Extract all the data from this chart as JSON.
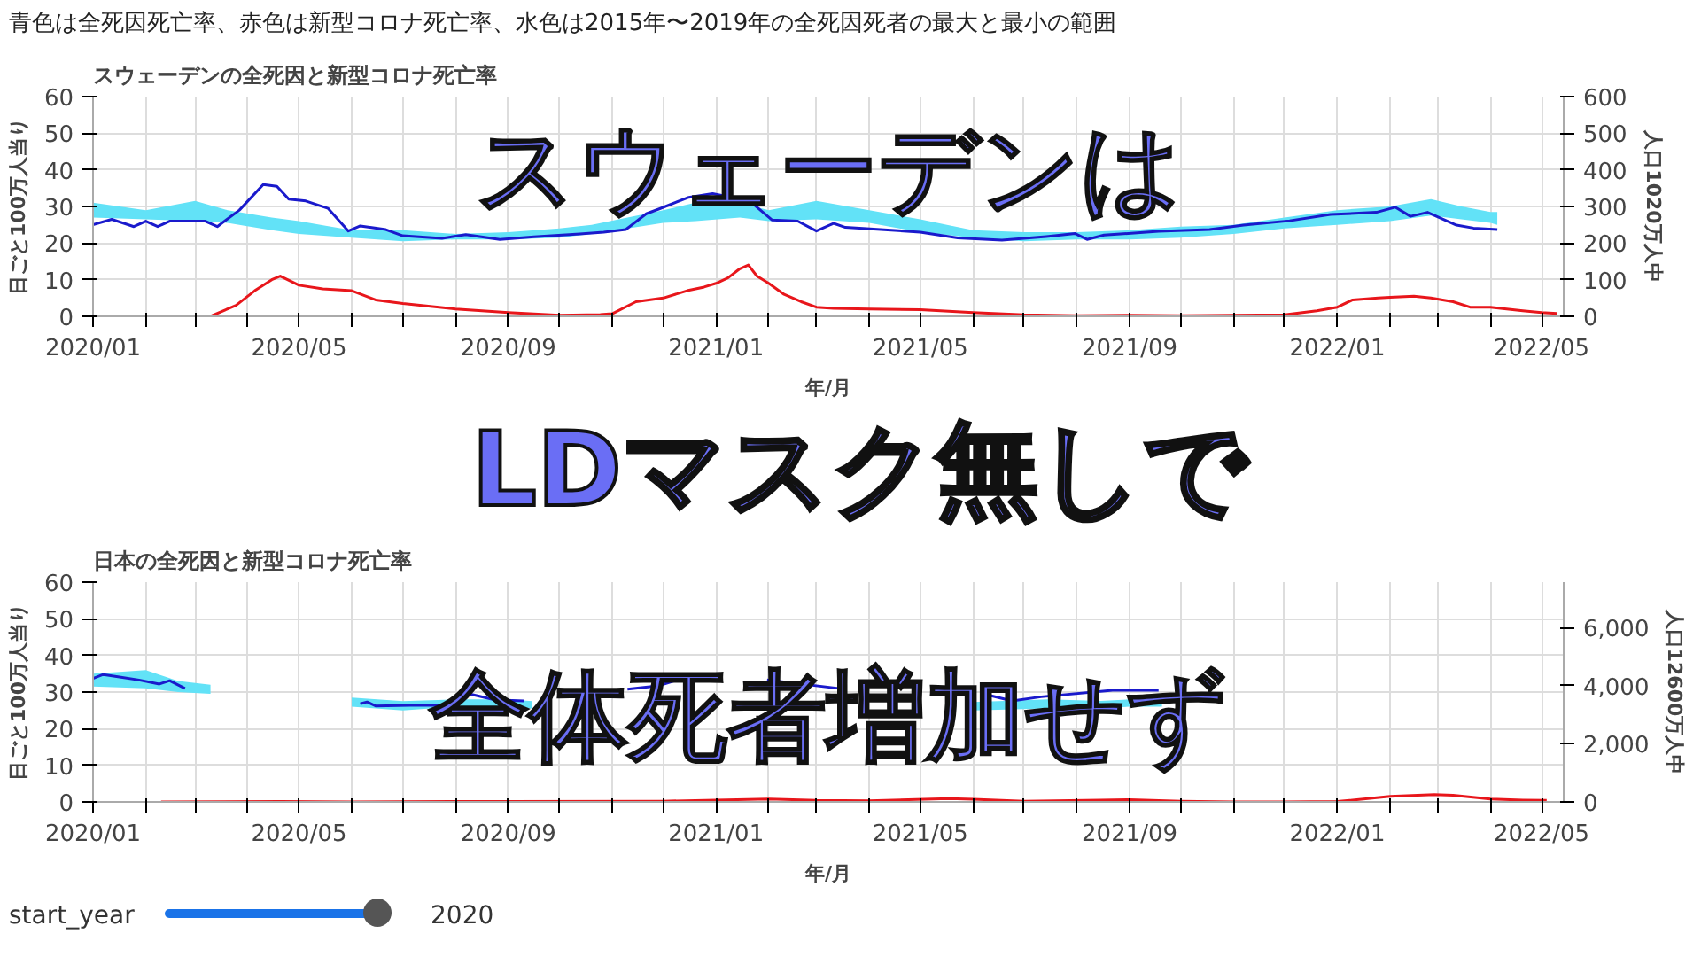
{
  "chart_data": [
    {
      "type": "line",
      "title": "スウェーデンの全死因と新型コロナ死亡率",
      "xlabel": "年/月",
      "ylabel": "日ごと100万人当り",
      "y2label": "人口1020万人中",
      "annotations": [
        "青色は全死因死亡率、赤色は新型コロナ死亡率、水色は2015年〜2019年の全死因死者の最大と最小の範囲",
        "スウェーデンは"
      ],
      "xlim": [
        "2020-01-01",
        "2022-05-14"
      ],
      "ylim": [
        0,
        60
      ],
      "yticks": [
        0,
        10,
        20,
        30,
        40,
        50,
        60
      ],
      "y2lim": [
        0,
        600
      ],
      "y2ticks": [
        0,
        100,
        200,
        300,
        400,
        500,
        600
      ],
      "xticks": [
        {
          "value": "2020-01",
          "label": "2020/01"
        },
        {
          "value": "2020-02",
          "label": null
        },
        {
          "value": "2020-03",
          "label": null
        },
        {
          "value": "2020-04",
          "label": null
        },
        {
          "value": "2020-05",
          "label": "2020/05"
        },
        {
          "value": "2020-06",
          "label": null
        },
        {
          "value": "2020-07",
          "label": null
        },
        {
          "value": "2020-08",
          "label": null
        },
        {
          "value": "2020-09",
          "label": "2020/09"
        },
        {
          "value": "2020-10",
          "label": null
        },
        {
          "value": "2020-11",
          "label": null
        },
        {
          "value": "2020-12",
          "label": null
        },
        {
          "value": "2021-01",
          "label": "2021/01"
        },
        {
          "value": "2021-02",
          "label": null
        },
        {
          "value": "2021-03",
          "label": null
        },
        {
          "value": "2021-04",
          "label": null
        },
        {
          "value": "2021-05",
          "label": "2021/05"
        },
        {
          "value": "2021-06",
          "label": null
        },
        {
          "value": "2021-07",
          "label": null
        },
        {
          "value": "2021-08",
          "label": null
        },
        {
          "value": "2021-09",
          "label": "2021/09"
        },
        {
          "value": "2021-10",
          "label": null
        },
        {
          "value": "2021-11",
          "label": null
        },
        {
          "value": "2021-12",
          "label": null
        },
        {
          "value": "2022-01",
          "label": "2022/01"
        },
        {
          "value": "2022-02",
          "label": null
        },
        {
          "value": "2022-03",
          "label": null
        },
        {
          "value": "2022-04",
          "label": null
        },
        {
          "value": "2022-05",
          "label": "2022/05"
        }
      ],
      "grid": true,
      "series": [
        {
          "color": "#62e2f7",
          "x": [
            "2020-01-01",
            "2020-02-01",
            "2020-03-01",
            "2020-03-20",
            "2020-04-15",
            "2020-05-01",
            "2020-06-01",
            "2020-07-01",
            "2020-08-01",
            "2020-09-01",
            "2020-10-01",
            "2020-10-20",
            "2020-12-01",
            "2020-12-20",
            "2021-01-15",
            "2021-02-01",
            "2021-03-01",
            "2021-04-01",
            "2021-05-01",
            "2021-06-01",
            "2021-07-01",
            "2021-08-01",
            "2021-09-01",
            "2021-10-01",
            "2021-11-01",
            "2021-12-01",
            "2022-01-01",
            "2022-02-01",
            "2022-02-25",
            "2022-03-15",
            "2022-04-01",
            "2022-04-05"
          ],
          "values": [
            null,
            null,
            null,
            null,
            null,
            null,
            null,
            null,
            null,
            null,
            null,
            null,
            null,
            null,
            null,
            null,
            null,
            null,
            null,
            null,
            null,
            null,
            null,
            null,
            null,
            null,
            null,
            null,
            null,
            null,
            null,
            null
          ],
          "upper": [
            31,
            29,
            31.5,
            29,
            27,
            26,
            23.5,
            23.5,
            22.5,
            23,
            24,
            25,
            29,
            31,
            31,
            29,
            31.5,
            29,
            26.5,
            23.5,
            23,
            23,
            23.5,
            24.5,
            25,
            27,
            29,
            30,
            32,
            30,
            28.5,
            28.5
          ],
          "lower": [
            27,
            26.5,
            26,
            25.5,
            23.5,
            22.5,
            21.5,
            20.5,
            21,
            21,
            21.5,
            22.5,
            25.5,
            26,
            27,
            26,
            26.5,
            25.5,
            23,
            21.5,
            20.5,
            21,
            21,
            21.5,
            22.5,
            24,
            25,
            26,
            27.5,
            26.5,
            25.5,
            25
          ]
        },
        {
          "color": "#1a1acc",
          "x": [
            "2020-01-01",
            "2020-01-12",
            "2020-01-25",
            "2020-02-01",
            "2020-02-08",
            "2020-02-15",
            "2020-03-07",
            "2020-03-14",
            "2020-03-27",
            "2020-04-10",
            "2020-04-18",
            "2020-04-25",
            "2020-05-05",
            "2020-05-18",
            "2020-05-30",
            "2020-06-06",
            "2020-06-21",
            "2020-07-01",
            "2020-07-24",
            "2020-08-07",
            "2020-08-27",
            "2020-09-16",
            "2020-10-13",
            "2020-10-27",
            "2020-11-09",
            "2020-11-21",
            "2020-11-29",
            "2020-12-16",
            "2020-12-30",
            "2021-01-12",
            "2021-01-22",
            "2021-02-03",
            "2021-02-18",
            "2021-03-01",
            "2021-03-11",
            "2021-03-18",
            "2021-05-01",
            "2021-05-23",
            "2021-06-18",
            "2021-07-14",
            "2021-07-31",
            "2021-08-07",
            "2021-08-17",
            "2021-09-18",
            "2021-10-18",
            "2021-11-07",
            "2021-12-04",
            "2021-12-28",
            "2022-01-24",
            "2022-02-04",
            "2022-02-13",
            "2022-02-23",
            "2022-03-12",
            "2022-03-22",
            "2022-04-05"
          ],
          "values": [
            25,
            26.5,
            24.5,
            26,
            24.5,
            26,
            26,
            24.5,
            29,
            36,
            35.5,
            32,
            31.5,
            29.5,
            23.3,
            24.7,
            23.7,
            22,
            21.3,
            22.3,
            21,
            21.7,
            22.5,
            23,
            23.7,
            28,
            29.4,
            32.5,
            33.5,
            32.3,
            31,
            26.3,
            26,
            23.3,
            25.4,
            24.3,
            23,
            21.4,
            20.8,
            21.8,
            22.6,
            21,
            22.2,
            23.2,
            23.7,
            24.9,
            26.1,
            27.8,
            28.4,
            29.8,
            27.3,
            28.4,
            24.9,
            24.1,
            23.7
          ]
        },
        {
          "color": "#e8161b",
          "x": [
            "2020-03-10",
            "2020-03-25",
            "2020-04-05",
            "2020-04-15",
            "2020-04-20",
            "2020-05-01",
            "2020-05-15",
            "2020-06-01",
            "2020-06-15",
            "2020-07-01",
            "2020-08-01",
            "2020-09-01",
            "2020-10-01",
            "2020-10-25",
            "2020-11-01",
            "2020-11-15",
            "2020-12-01",
            "2020-12-15",
            "2020-12-25",
            "2021-01-01",
            "2021-01-08",
            "2021-01-15",
            "2021-01-20",
            "2021-01-25",
            "2021-02-01",
            "2021-02-10",
            "2021-02-20",
            "2021-03-01",
            "2021-03-11",
            "2021-04-01",
            "2021-05-01",
            "2021-06-01",
            "2021-07-01",
            "2021-08-01",
            "2021-09-01",
            "2021-10-01",
            "2021-11-01",
            "2021-12-01",
            "2021-12-20",
            "2022-01-01",
            "2022-01-10",
            "2022-01-25",
            "2022-02-01",
            "2022-02-15",
            "2022-02-25",
            "2022-03-10",
            "2022-03-20",
            "2022-04-01",
            "2022-04-20",
            "2022-05-01",
            "2022-05-10"
          ],
          "values": [
            0,
            3,
            7,
            10,
            11,
            8.5,
            7.5,
            7,
            4.5,
            3.5,
            2,
            1,
            0.3,
            0.5,
            0.7,
            4,
            5,
            7,
            8,
            9,
            10.5,
            13,
            14,
            11,
            9,
            6,
            4,
            2.5,
            2.2,
            2,
            1.8,
            1,
            0.4,
            0.2,
            0.3,
            0.2,
            0.3,
            0.4,
            1.5,
            2.5,
            4.5,
            5,
            5.2,
            5.5,
            5,
            4,
            2.5,
            2.5,
            1.5,
            1,
            0.8
          ]
        }
      ]
    },
    {
      "type": "line",
      "title": "日本の全死因と新型コロナ死亡率",
      "xlabel": "年/月",
      "ylabel": "日ごと100万人当り",
      "y2label": "人口12600万人中",
      "annotations": [
        "LDマスク無しで",
        "全体死者増加せず",
        "start_year",
        "2020"
      ],
      "xlim": [
        "2020-01-01",
        "2022-05-14"
      ],
      "ylim": [
        0,
        60
      ],
      "yticks": [
        0,
        10,
        20,
        30,
        40,
        50,
        60
      ],
      "y2lim": [
        0,
        7560
      ],
      "y2ticks": [
        0,
        {
          "value": 2000,
          "label": "2,000"
        },
        {
          "value": 4000,
          "label": "4,000"
        },
        {
          "value": 6000,
          "label": "6,000"
        }
      ],
      "xticks": [
        {
          "value": "2020-01",
          "label": "2020/01"
        },
        {
          "value": "2020-02",
          "label": null
        },
        {
          "value": "2020-03",
          "label": null
        },
        {
          "value": "2020-04",
          "label": null
        },
        {
          "value": "2020-05",
          "label": "2020/05"
        },
        {
          "value": "2020-06",
          "label": null
        },
        {
          "value": "2020-07",
          "label": null
        },
        {
          "value": "2020-08",
          "label": null
        },
        {
          "value": "2020-09",
          "label": "2020/09"
        },
        {
          "value": "2020-10",
          "label": null
        },
        {
          "value": "2020-11",
          "label": null
        },
        {
          "value": "2020-12",
          "label": null
        },
        {
          "value": "2021-01",
          "label": "2021/01"
        },
        {
          "value": "2021-02",
          "label": null
        },
        {
          "value": "2021-03",
          "label": null
        },
        {
          "value": "2021-04",
          "label": null
        },
        {
          "value": "2021-05",
          "label": "2021/05"
        },
        {
          "value": "2021-06",
          "label": null
        },
        {
          "value": "2021-07",
          "label": null
        },
        {
          "value": "2021-08",
          "label": null
        },
        {
          "value": "2021-09",
          "label": "2021/09"
        },
        {
          "value": "2021-10",
          "label": null
        },
        {
          "value": "2021-11",
          "label": null
        },
        {
          "value": "2021-12",
          "label": null
        },
        {
          "value": "2022-01",
          "label": "2022/01"
        },
        {
          "value": "2022-02",
          "label": null
        },
        {
          "value": "2022-03",
          "label": null
        },
        {
          "value": "2022-04",
          "label": null
        },
        {
          "value": "2022-05",
          "label": "2022/05"
        }
      ],
      "grid": true,
      "series": [
        {
          "color": "#62e2f7",
          "x": [
            "2020-01-01",
            "2020-02-01",
            "2020-02-20",
            "2020-03-10"
          ],
          "values": [
            null,
            null,
            null,
            null
          ],
          "upper": [
            35,
            36,
            33,
            32
          ],
          "lower": [
            31.5,
            31,
            30,
            29.5
          ]
        },
        {
          "color": "#62e2f7",
          "x": [
            "2020-06-01",
            "2020-07-01",
            "2020-08-01",
            "2020-09-01",
            "2020-09-15"
          ],
          "values": [
            null,
            null,
            null,
            null,
            null
          ],
          "upper": [
            28.5,
            27.5,
            28,
            28,
            27.5
          ],
          "lower": [
            26,
            25,
            26,
            25.5,
            25.5
          ]
        },
        {
          "color": "#62e2f7",
          "x": [
            "2021-06-01",
            "2021-07-15",
            "2021-08-15",
            "2021-09-01",
            "2021-09-20"
          ],
          "values": [
            null,
            null,
            null,
            null,
            null
          ],
          "upper": [
            27.3,
            28,
            27.6,
            28,
            28
          ],
          "lower": [
            25,
            25.5,
            25.6,
            26,
            26
          ]
        },
        {
          "color": "#1a1acc",
          "x": [
            "2020-01-01",
            "2020-01-07",
            "2020-01-28",
            "2020-02-09",
            "2020-02-15",
            "2020-02-24",
            "2020-03-05",
            "2020-06-06",
            "2020-06-10",
            "2020-06-15",
            "2020-07-05",
            "2020-07-25",
            "2020-08-10",
            "2020-08-24",
            "2020-09-10",
            "2020-09-20",
            "2020-11-01",
            "2020-11-10",
            "2020-11-28",
            "2020-12-08",
            "2020-12-17",
            "2021-01-05",
            "2021-01-31",
            "2021-03-14",
            "2021-04-01",
            "2021-06-08",
            "2021-06-24",
            "2021-07-11",
            "2021-08-22",
            "2021-09-18"
          ],
          "values": [
            33.7,
            34.8,
            33.3,
            32.2,
            33.1,
            31,
            null,
            26.8,
            27.3,
            26.2,
            26.4,
            26.4,
            29.4,
            27.9,
            27.6,
            null,
            null,
            30.8,
            31.7,
            33.1,
            34,
            null,
            33.3,
            31,
            null,
            29.4,
            27.6,
            28.7,
            30.5,
            30.5
          ]
        },
        {
          "color": "#e8161b",
          "x": [
            "2020-02-10",
            "2020-04-20",
            "2020-06-01",
            "2020-08-01",
            "2020-09-01",
            "2020-12-01",
            "2021-01-01",
            "2021-02-01",
            "2021-03-01",
            "2021-04-01",
            "2021-05-18",
            "2021-06-01",
            "2021-07-01",
            "2021-08-15",
            "2021-09-01",
            "2021-10-01",
            "2021-11-01",
            "2021-12-01",
            "2022-01-01",
            "2022-02-01",
            "2022-02-27",
            "2022-03-10",
            "2022-04-01",
            "2022-04-20",
            "2022-05-04"
          ],
          "values": [
            0,
            0.1,
            0,
            0.1,
            0.1,
            0.2,
            0.5,
            0.8,
            0.4,
            0.3,
            0.9,
            0.7,
            0.2,
            0.5,
            0.6,
            0.2,
            0,
            0,
            0.1,
            1.5,
            2,
            1.8,
            0.8,
            0.5,
            0.4
          ]
        }
      ]
    }
  ]
}
